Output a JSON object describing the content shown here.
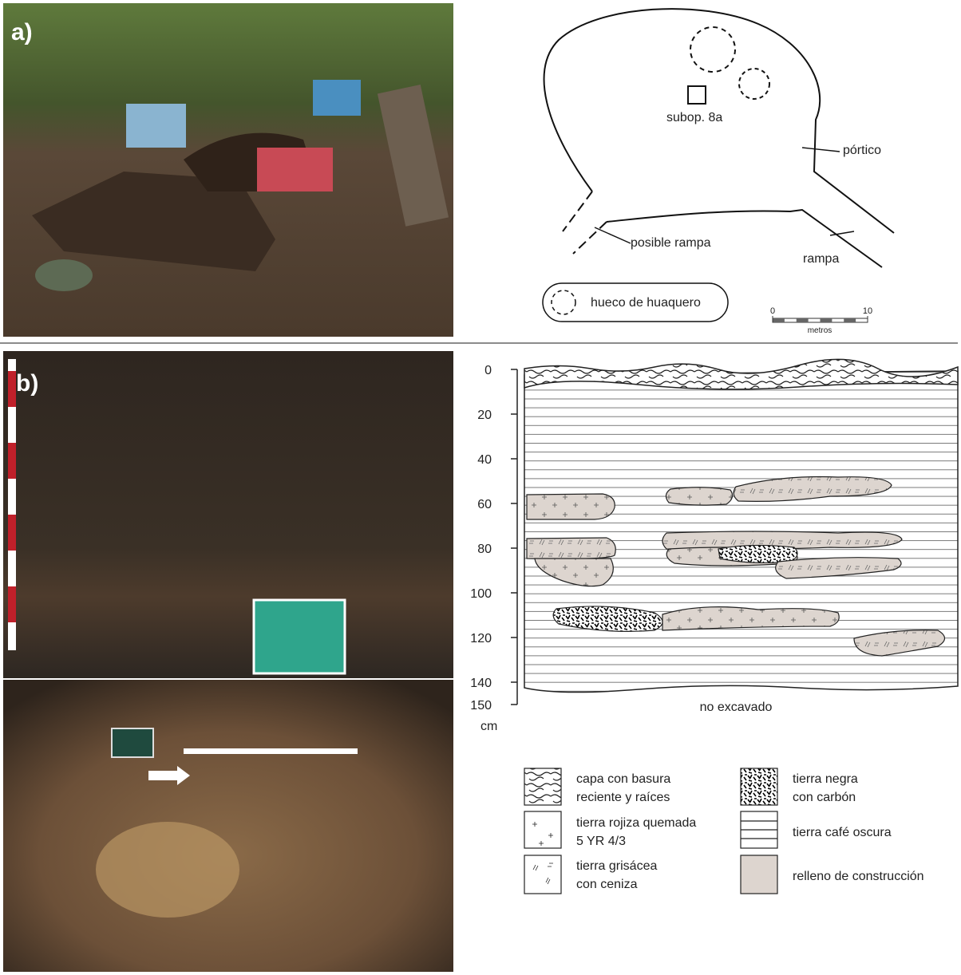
{
  "panel_a": {
    "label": "a)",
    "map": {
      "subop": "subop. 8a",
      "portico": "pórtico",
      "posible_rampa": "posible rampa",
      "rampa": "rampa",
      "legend": "hueco de huaquero",
      "scale": {
        "ticks": [
          0,
          10
        ],
        "unit": "metros"
      }
    }
  },
  "panel_b": {
    "label": "b)",
    "profile": {
      "depth_ticks": [
        0,
        20,
        40,
        60,
        80,
        100,
        120,
        140,
        150
      ],
      "unit": "cm",
      "bottom_note": "no excavado"
    },
    "legend": [
      {
        "lines": [
          "capa con basura",
          "reciente y raíces"
        ]
      },
      {
        "lines": [
          "tierra rojiza quemada",
          "5 YR 4/3"
        ]
      },
      {
        "lines": [
          "tierra grisácea",
          "con ceniza"
        ]
      },
      {
        "lines": [
          "tierra negra",
          "con carbón"
        ]
      },
      {
        "lines": [
          "tierra café oscura"
        ]
      },
      {
        "lines": [
          "relleno de construcción"
        ]
      }
    ]
  }
}
